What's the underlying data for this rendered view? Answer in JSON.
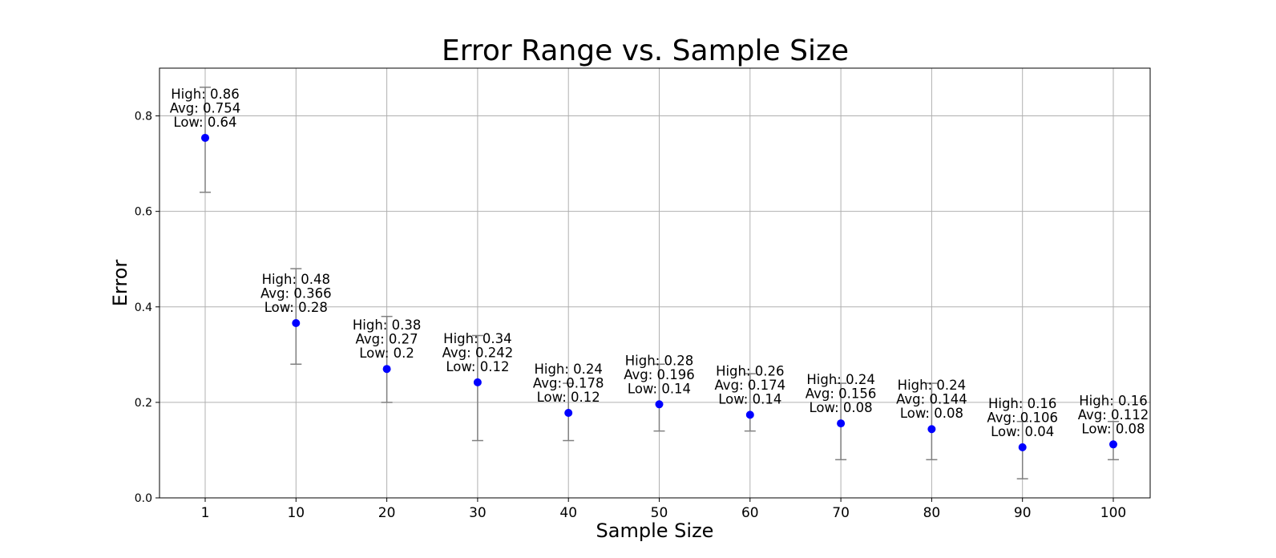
{
  "chart_data": {
    "type": "scatter",
    "title": "Error Range vs. Sample Size",
    "xlabel": "Sample Size",
    "ylabel": "Error",
    "categories": [
      "1",
      "10",
      "20",
      "30",
      "40",
      "50",
      "60",
      "70",
      "80",
      "90",
      "100"
    ],
    "ylim": [
      0,
      0.9
    ],
    "yticks": [
      "0.0",
      "0.2",
      "0.4",
      "0.6",
      "0.8"
    ],
    "grid": true,
    "series": [
      {
        "avg": [
          0.754,
          0.366,
          0.27,
          0.242,
          0.178,
          0.196,
          0.174,
          0.156,
          0.144,
          0.106,
          0.112
        ],
        "high": [
          0.86,
          0.48,
          0.38,
          0.34,
          0.24,
          0.28,
          0.26,
          0.24,
          0.24,
          0.16,
          0.16
        ],
        "low": [
          0.64,
          0.28,
          0.2,
          0.12,
          0.12,
          0.14,
          0.14,
          0.08,
          0.08,
          0.04,
          0.08
        ]
      }
    ],
    "annotations": [
      [
        "High: 0.86",
        "Avg: 0.754",
        "Low: 0.64"
      ],
      [
        "High: 0.48",
        "Avg: 0.366",
        "Low: 0.28"
      ],
      [
        "High: 0.38",
        "Avg: 0.27",
        "Low: 0.2"
      ],
      [
        "High: 0.34",
        "Avg: 0.242",
        "Low: 0.12"
      ],
      [
        "High: 0.24",
        "Avg: 0.178",
        "Low: 0.12"
      ],
      [
        "High: 0.28",
        "Avg: 0.196",
        "Low: 0.14"
      ],
      [
        "High: 0.26",
        "Avg: 0.174",
        "Low: 0.14"
      ],
      [
        "High: 0.24",
        "Avg: 0.156",
        "Low: 0.08"
      ],
      [
        "High: 0.24",
        "Avg: 0.144",
        "Low: 0.08"
      ],
      [
        "High: 0.16",
        "Avg: 0.106",
        "Low: 0.04"
      ],
      [
        "High: 0.16",
        "Avg: 0.112",
        "Low: 0.08"
      ]
    ],
    "colors": {
      "point": "#0000ff",
      "errorbar": "#808080",
      "grid": "#b0b0b0"
    }
  }
}
